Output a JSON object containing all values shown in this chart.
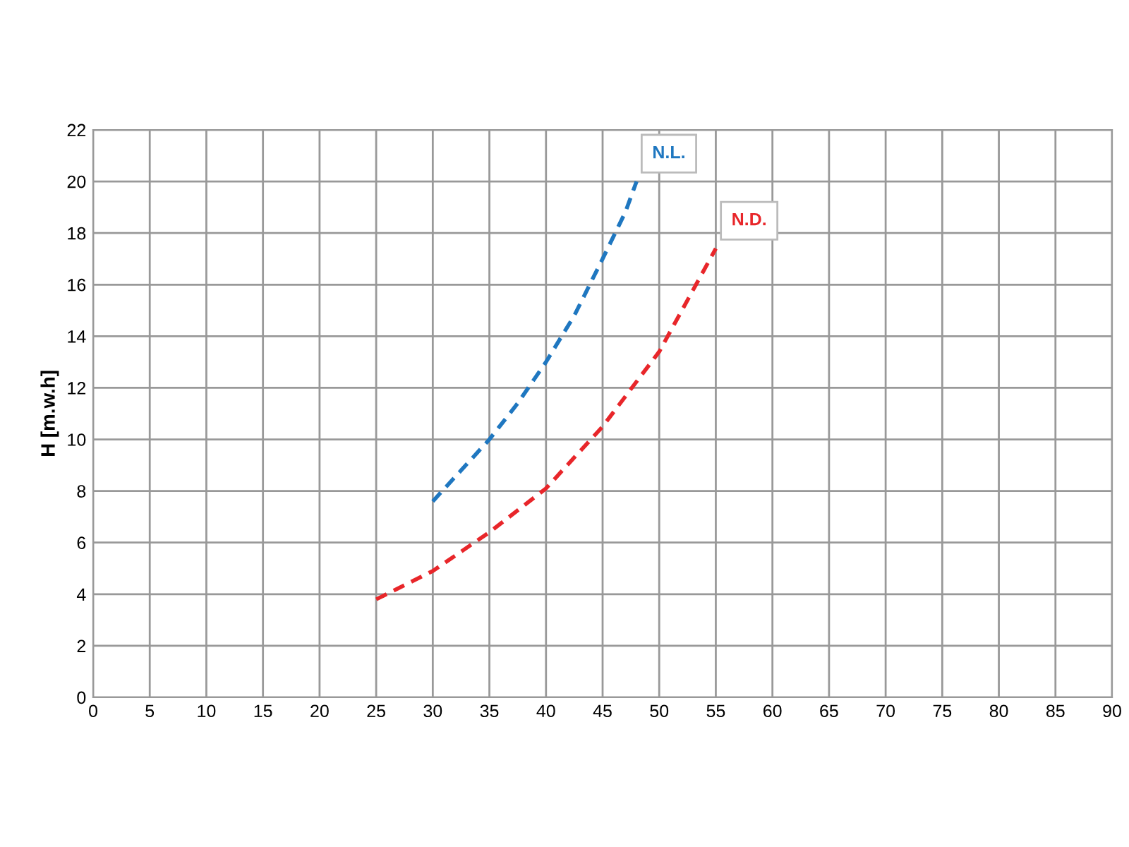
{
  "chart_data": {
    "type": "line",
    "ylabel": "H [m.w.h]",
    "xlim": [
      0,
      90
    ],
    "ylim": [
      0,
      22
    ],
    "xticks": [
      0,
      5,
      10,
      15,
      20,
      25,
      30,
      35,
      40,
      45,
      50,
      55,
      60,
      65,
      70,
      75,
      80,
      85,
      90
    ],
    "yticks": [
      0,
      2,
      4,
      6,
      8,
      10,
      12,
      14,
      16,
      18,
      20,
      22
    ],
    "grid": true,
    "line_style": "dashed",
    "marker": "none",
    "series": [
      {
        "name": "N.L.",
        "color": "#1f77c0",
        "x": [
          30,
          32.5,
          35,
          37.5,
          40,
          42.5,
          45,
          47,
          48
        ],
        "values": [
          7.6,
          8.8,
          10,
          11.4,
          13,
          14.8,
          17,
          18.8,
          20
        ]
      },
      {
        "name": "N.D.",
        "color": "#e8262a",
        "x": [
          25,
          30,
          35,
          40,
          45,
          50,
          55
        ],
        "values": [
          3.8,
          4.9,
          6.4,
          8.1,
          10.5,
          13.4,
          17.4
        ]
      }
    ]
  }
}
